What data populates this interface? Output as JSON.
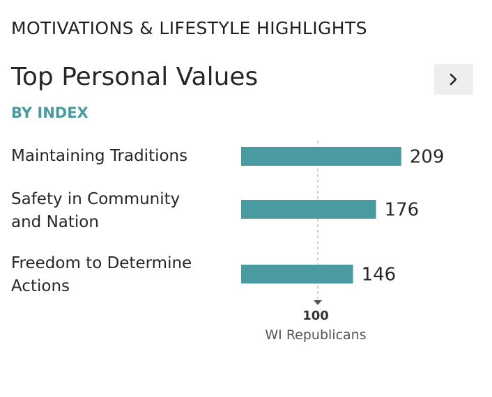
{
  "header": {
    "section_title": "MOTIVATIONS & LIFESTYLE HIGHLIGHTS",
    "card_title": "Top Personal Values",
    "subtitle": "BY INDEX",
    "next_icon": "chevron-right-icon"
  },
  "colors": {
    "bar": "#4a9aa2",
    "accent": "#4a9aa2",
    "text": "#262626",
    "reference_line": "#bbbbbb",
    "button_bg": "#eeeeee"
  },
  "chart_data": {
    "type": "bar",
    "orientation": "horizontal",
    "categories": [
      "Maintaining Traditions",
      "Safety in Community and Nation",
      "Freedom to Determine Actions"
    ],
    "category_lines": [
      [
        "Maintaining Traditions"
      ],
      [
        "Safety in Community",
        "and Nation"
      ],
      [
        "Freedom to Determine",
        "Actions"
      ]
    ],
    "values": [
      209,
      176,
      146
    ],
    "value_labels": [
      "209",
      "176",
      "146"
    ],
    "reference": {
      "value": 100,
      "label": "100",
      "caption": "WI Republicans"
    },
    "grid": false,
    "legend": "none"
  }
}
